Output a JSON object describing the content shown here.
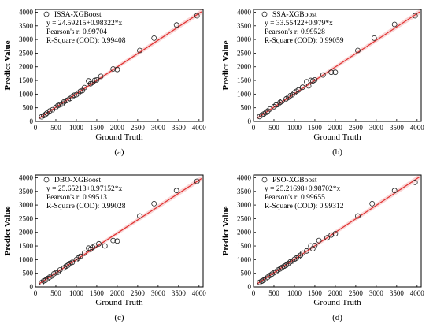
{
  "chart_data": [
    {
      "type": "scatter",
      "panel_label": "(a)",
      "legend_label": "ISSA-XGBoost",
      "equation": "y = 24.59215+0.98322*x",
      "pearson": "Pearson's r: 0.99704",
      "r_square": "R-Square (COD): 0.99408",
      "xlabel": "Ground Truth",
      "ylabel": "Predict Value",
      "xlim": [
        0,
        4100
      ],
      "ylim": [
        0,
        4100
      ],
      "xticks": [
        0,
        500,
        1000,
        1500,
        2000,
        2500,
        3000,
        3500,
        4000
      ],
      "yticks": [
        0,
        500,
        1000,
        1500,
        2000,
        2500,
        3000,
        3500,
        4000
      ],
      "fit": {
        "intercept": 24.59215,
        "slope": 0.98322
      },
      "legend_position": "top-left",
      "grid": false,
      "points": [
        [
          150,
          170
        ],
        [
          200,
          210
        ],
        [
          250,
          260
        ],
        [
          280,
          300
        ],
        [
          350,
          380
        ],
        [
          420,
          430
        ],
        [
          500,
          520
        ],
        [
          550,
          580
        ],
        [
          600,
          610
        ],
        [
          650,
          640
        ],
        [
          700,
          720
        ],
        [
          750,
          760
        ],
        [
          800,
          790
        ],
        [
          850,
          840
        ],
        [
          900,
          910
        ],
        [
          950,
          960
        ],
        [
          1000,
          980
        ],
        [
          1050,
          1040
        ],
        [
          1100,
          1100
        ],
        [
          1150,
          1130
        ],
        [
          1200,
          1240
        ],
        [
          1300,
          1480
        ],
        [
          1350,
          1380
        ],
        [
          1400,
          1430
        ],
        [
          1450,
          1500
        ],
        [
          1500,
          1520
        ],
        [
          1600,
          1650
        ],
        [
          1900,
          1920
        ],
        [
          2000,
          1900
        ],
        [
          2550,
          2600
        ],
        [
          2900,
          3050
        ],
        [
          3450,
          3530
        ],
        [
          3950,
          3870
        ]
      ]
    },
    {
      "type": "scatter",
      "panel_label": "(b)",
      "legend_label": "SSA-XGBoost",
      "equation": "y = 33.55422+0.979*x",
      "pearson": "Pearson's r: 0.99528",
      "r_square": "R-Square (COD): 0.99059",
      "xlabel": "Ground Truth",
      "ylabel": "Predict Value",
      "xlim": [
        0,
        4100
      ],
      "ylim": [
        0,
        4100
      ],
      "xticks": [
        0,
        500,
        1000,
        1500,
        2000,
        2500,
        3000,
        3500,
        4000
      ],
      "yticks": [
        0,
        500,
        1000,
        1500,
        2000,
        2500,
        3000,
        3500,
        4000
      ],
      "fit": {
        "intercept": 33.55422,
        "slope": 0.979
      },
      "legend_position": "top-left",
      "grid": false,
      "points": [
        [
          150,
          180
        ],
        [
          200,
          230
        ],
        [
          250,
          270
        ],
        [
          300,
          320
        ],
        [
          350,
          380
        ],
        [
          400,
          450
        ],
        [
          500,
          540
        ],
        [
          550,
          600
        ],
        [
          600,
          620
        ],
        [
          650,
          700
        ],
        [
          700,
          740
        ],
        [
          800,
          830
        ],
        [
          850,
          880
        ],
        [
          900,
          940
        ],
        [
          950,
          980
        ],
        [
          1000,
          1050
        ],
        [
          1050,
          1100
        ],
        [
          1100,
          1150
        ],
        [
          1200,
          1250
        ],
        [
          1300,
          1450
        ],
        [
          1350,
          1300
        ],
        [
          1400,
          1500
        ],
        [
          1450,
          1480
        ],
        [
          1500,
          1520
        ],
        [
          1700,
          1700
        ],
        [
          1900,
          1800
        ],
        [
          2000,
          1800
        ],
        [
          2550,
          2600
        ],
        [
          2950,
          3050
        ],
        [
          3450,
          3550
        ],
        [
          3950,
          3870
        ]
      ]
    },
    {
      "type": "scatter",
      "panel_label": "(c)",
      "legend_label": "DBO-XGBoost",
      "equation": "y = 25.65213+0.97152*x",
      "pearson": "Pearson's r: 0.99513",
      "r_square": "R-Square (COD): 0.99028",
      "xlabel": "Ground Truth",
      "ylabel": "Predict Value",
      "xlim": [
        0,
        4100
      ],
      "ylim": [
        0,
        4100
      ],
      "xticks": [
        0,
        500,
        1000,
        1500,
        2000,
        2500,
        3000,
        3500,
        4000
      ],
      "yticks": [
        0,
        500,
        1000,
        1500,
        2000,
        2500,
        3000,
        3500,
        4000
      ],
      "fit": {
        "intercept": 25.65213,
        "slope": 0.97152
      },
      "legend_position": "top-left",
      "grid": false,
      "points": [
        [
          150,
          160
        ],
        [
          200,
          220
        ],
        [
          250,
          250
        ],
        [
          300,
          310
        ],
        [
          350,
          360
        ],
        [
          400,
          400
        ],
        [
          450,
          480
        ],
        [
          500,
          520
        ],
        [
          550,
          540
        ],
        [
          600,
          620
        ],
        [
          700,
          700
        ],
        [
          750,
          760
        ],
        [
          800,
          800
        ],
        [
          850,
          860
        ],
        [
          900,
          900
        ],
        [
          1000,
          1000
        ],
        [
          1050,
          1060
        ],
        [
          1100,
          1120
        ],
        [
          1200,
          1240
        ],
        [
          1300,
          1420
        ],
        [
          1350,
          1380
        ],
        [
          1400,
          1450
        ],
        [
          1450,
          1500
        ],
        [
          1550,
          1580
        ],
        [
          1700,
          1500
        ],
        [
          1900,
          1700
        ],
        [
          2000,
          1680
        ],
        [
          2550,
          2600
        ],
        [
          2900,
          3050
        ],
        [
          3450,
          3530
        ],
        [
          3950,
          3870
        ]
      ]
    },
    {
      "type": "scatter",
      "panel_label": "(d)",
      "legend_label": "PSO-XGBoost",
      "equation": "y = 25.21698+0.98702*x",
      "pearson": "Pearson's r: 0.99655",
      "r_square": "R-Square (COD): 0.99312",
      "xlabel": "Ground Truth",
      "ylabel": "Predict Value",
      "xlim": [
        0,
        4100
      ],
      "ylim": [
        0,
        4100
      ],
      "xticks": [
        0,
        500,
        1000,
        1500,
        2000,
        2500,
        3000,
        3500,
        4000
      ],
      "yticks": [
        0,
        500,
        1000,
        1500,
        2000,
        2500,
        3000,
        3500,
        4000
      ],
      "fit": {
        "intercept": 25.21698,
        "slope": 0.98702
      },
      "legend_position": "top-left",
      "grid": false,
      "points": [
        [
          150,
          170
        ],
        [
          200,
          210
        ],
        [
          250,
          250
        ],
        [
          300,
          300
        ],
        [
          350,
          360
        ],
        [
          400,
          420
        ],
        [
          450,
          470
        ],
        [
          500,
          520
        ],
        [
          550,
          560
        ],
        [
          600,
          620
        ],
        [
          650,
          660
        ],
        [
          700,
          720
        ],
        [
          750,
          760
        ],
        [
          800,
          800
        ],
        [
          850,
          860
        ],
        [
          900,
          920
        ],
        [
          950,
          950
        ],
        [
          1000,
          1010
        ],
        [
          1050,
          1060
        ],
        [
          1100,
          1100
        ],
        [
          1150,
          1160
        ],
        [
          1200,
          1240
        ],
        [
          1300,
          1320
        ],
        [
          1400,
          1500
        ],
        [
          1450,
          1400
        ],
        [
          1500,
          1520
        ],
        [
          1600,
          1700
        ],
        [
          1800,
          1800
        ],
        [
          1900,
          1900
        ],
        [
          2000,
          1950
        ],
        [
          2550,
          2600
        ],
        [
          2900,
          3050
        ],
        [
          3450,
          3530
        ],
        [
          3950,
          3830
        ]
      ]
    }
  ]
}
